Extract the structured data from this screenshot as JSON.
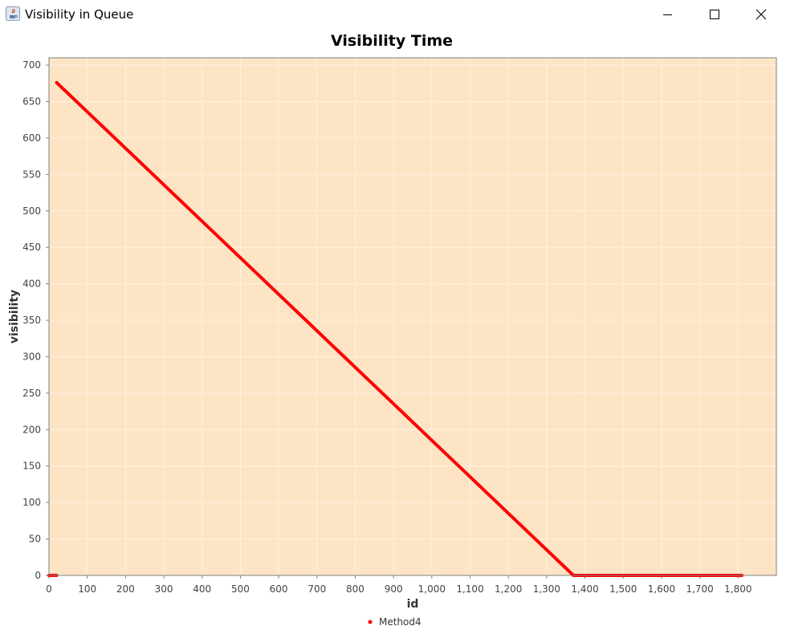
{
  "window": {
    "title": "Visibility in Queue",
    "icons": [
      "java-app-icon",
      "minimize-icon",
      "maximize-icon",
      "close-icon"
    ]
  },
  "chart_data": {
    "type": "line",
    "title": "Visibility Time",
    "xlabel": "id",
    "ylabel": "visibility",
    "xlim": [
      0,
      1900
    ],
    "ylim": [
      0,
      710
    ],
    "x_ticks": [
      0,
      100,
      200,
      300,
      400,
      500,
      600,
      700,
      800,
      900,
      1000,
      1100,
      1200,
      1300,
      1400,
      1500,
      1600,
      1700,
      1800
    ],
    "x_tick_labels": [
      "0",
      "100",
      "200",
      "300",
      "400",
      "500",
      "600",
      "700",
      "800",
      "900",
      "1,000",
      "1,100",
      "1,200",
      "1,300",
      "1,400",
      "1,500",
      "1,600",
      "1,700",
      "1,800"
    ],
    "y_ticks": [
      0,
      50,
      100,
      150,
      200,
      250,
      300,
      350,
      400,
      450,
      500,
      550,
      600,
      650,
      700
    ],
    "y_tick_labels": [
      "0",
      "50",
      "100",
      "150",
      "200",
      "250",
      "300",
      "350",
      "400",
      "450",
      "500",
      "550",
      "600",
      "650",
      "700"
    ],
    "grid": true,
    "legend_position": "bottom-center",
    "colors": {
      "plot_background": "#fde4c5",
      "series": "#ff0000",
      "gridline": "#fff1e2"
    },
    "series": [
      {
        "name": "Method4",
        "segments": [
          {
            "x": [
              0,
              20
            ],
            "y": [
              0,
              0
            ]
          },
          {
            "x": [
              20,
              1370,
              1810
            ],
            "y": [
              676,
              0,
              0
            ]
          }
        ]
      }
    ]
  }
}
